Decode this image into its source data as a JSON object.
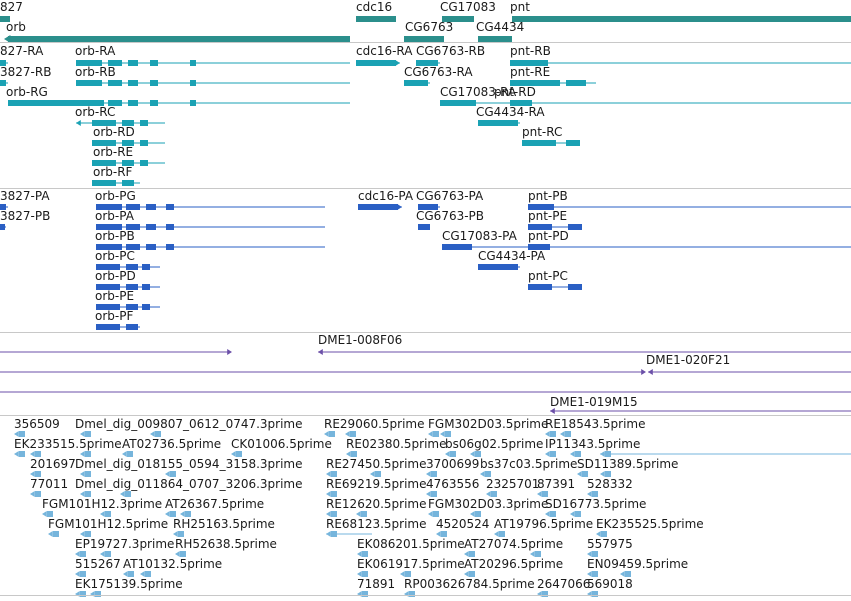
{
  "colors": {
    "gene": "#2b8f8c",
    "transcript": "#1aa2b4",
    "protein": "#2a5fc4",
    "clone": "#6b4fa8",
    "est": "#76b5dc",
    "divider": "#c8c8c8"
  },
  "tracks": [
    {
      "name": "gene-track",
      "labels": [
        "827",
        "orb",
        "cdc16",
        "CG6763",
        "CG17083",
        "CG4434",
        "pnt"
      ]
    },
    {
      "name": "transcript-track",
      "labels": [
        "827-RA",
        "orb-RA",
        "cdc16-RA",
        "CG6763-RB",
        "pnt-RB",
        "3827-RB",
        "orb-RB",
        "CG6763-RA",
        "pnt-RE",
        "orb-RG",
        "CG17083-RA",
        "pnt-RD",
        "orb-RC",
        "CG4434-RA",
        "orb-RD",
        "pnt-RC",
        "orb-RE",
        "orb-RF"
      ]
    },
    {
      "name": "protein-track",
      "labels": [
        "3827-PA",
        "orb-PG",
        "cdc16-PA",
        "CG6763-PA",
        "pnt-PB",
        "3827-PB",
        "orb-PA",
        "CG6763-PB",
        "pnt-PE",
        "orb-PB",
        "CG17083-PA",
        "pnt-PD",
        "orb-PC",
        "CG4434-PA",
        "orb-PD",
        "pnt-PC",
        "orb-PE",
        "orb-PF"
      ]
    },
    {
      "name": "clone-track",
      "labels": [
        "DME1-008F06",
        "DME1-020F21",
        "DME1-019M15"
      ]
    },
    {
      "name": "est-track",
      "labels": [
        "356509",
        "Dmel_dig_009807_0612_0747.3prime",
        "RE29060.5prime",
        "FGM302D03.5prime",
        "RE18543.5prime",
        "EK233515.5prime",
        "AT02736.5prime",
        "CK01006.5prime",
        "RE02380.5prime",
        "bs06g02.5prime",
        "IP11343.5prime",
        "201697",
        "Dmel_dig_018155_0594_3158.3prime",
        "RE27450.5prime",
        "3700699",
        "bs37c03.5prime",
        "SD11389.5prime",
        "77011",
        "Dmel_dig_011864_0707_3206.3prime",
        "RE69219.5prime",
        "4763556",
        "2325701",
        "87391",
        "528332",
        "FGM101H12.3prime",
        "AT26367.5prime",
        "RE12620.5prime",
        "FGM302D03.3prime",
        "SD16773.5prime",
        "FGM101H12.5prime",
        "RH25163.5prime",
        "RE68123.5prime",
        "4520524",
        "AT19796.5prime",
        "EK235525.5prime",
        "EP19727.3prime",
        "RH52638.5prime",
        "EK086201.5prime",
        "AT27074.5prime",
        "557975",
        "515267",
        "AT10132.5prime",
        "EK061917.5prime",
        "AT20296.5prime",
        "EN09459.5prime",
        "EK175139.5prime",
        "71891",
        "RP003626784.5prime",
        "2647066",
        "569018"
      ]
    }
  ]
}
